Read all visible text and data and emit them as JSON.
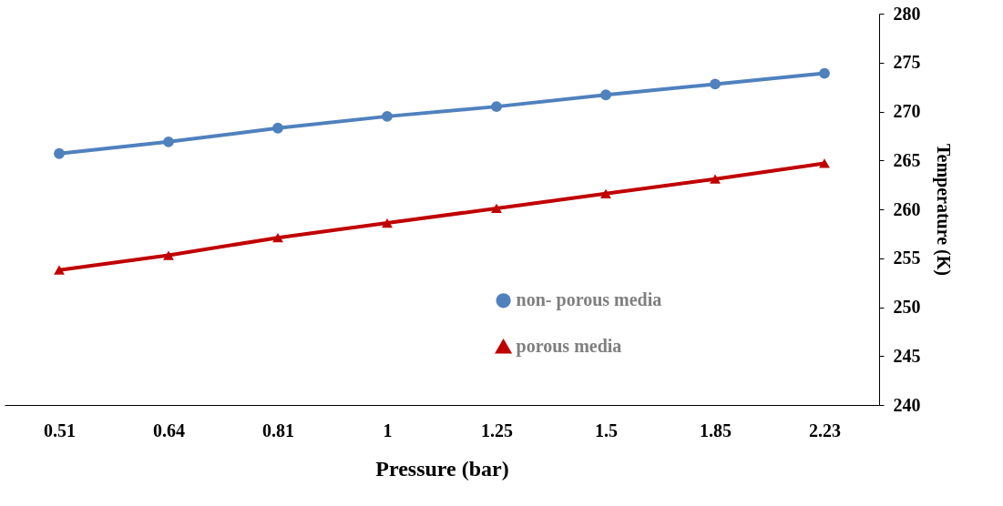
{
  "chart_data": {
    "type": "line",
    "xlabel": "Pressure (bar)",
    "ylabel": "Temperature (K)",
    "categories": [
      "0.51",
      "0.64",
      "0.81",
      "1",
      "1.25",
      "1.5",
      "1.85",
      "2.23"
    ],
    "series": [
      {
        "name": "non- porous media",
        "color": "#4f81bd",
        "marker": "circle",
        "values": [
          265.7,
          266.9,
          268.3,
          269.5,
          270.5,
          271.7,
          272.8,
          273.9
        ]
      },
      {
        "name": "porous media",
        "color": "#c00000",
        "marker": "triangle",
        "values": [
          253.8,
          255.3,
          257.1,
          258.6,
          260.1,
          261.6,
          263.1,
          264.7
        ]
      }
    ],
    "ylim": [
      240,
      280
    ],
    "yticks": [
      240,
      245,
      250,
      255,
      260,
      265,
      270,
      275,
      280
    ],
    "grid": false,
    "legend": "bottom"
  }
}
